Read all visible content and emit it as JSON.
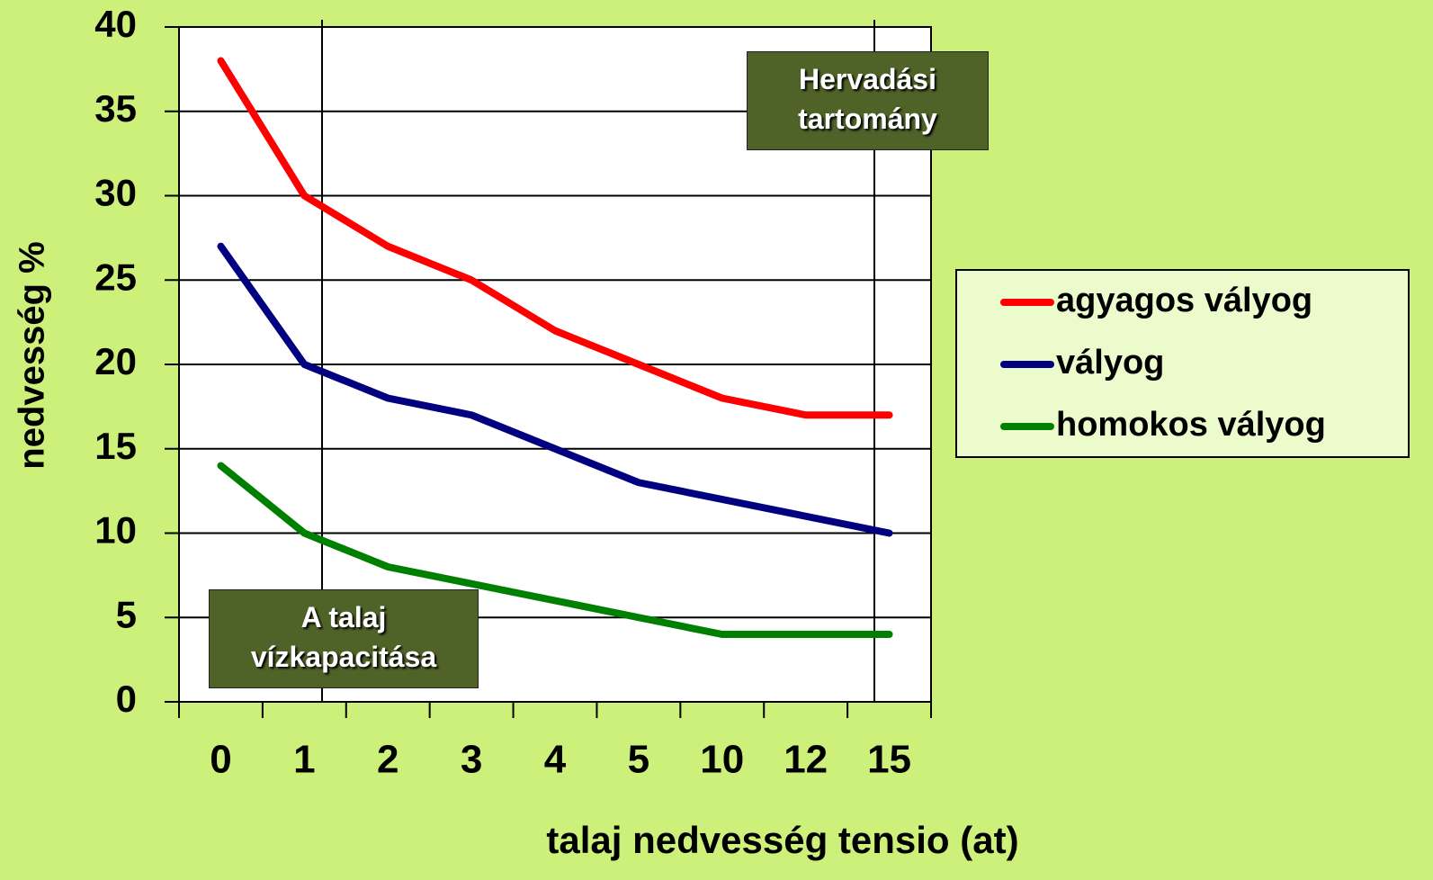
{
  "chart_data": {
    "type": "line",
    "categories": [
      "0",
      "1",
      "2",
      "3",
      "4",
      "5",
      "10",
      "12",
      "15"
    ],
    "series": [
      {
        "name": "agyagos vályog",
        "color": "#ff0000",
        "values": [
          38,
          30,
          27,
          25,
          22,
          20,
          18,
          17,
          17
        ]
      },
      {
        "name": "vályog",
        "color": "#000080",
        "values": [
          27,
          20,
          18,
          17,
          15,
          13,
          12,
          11,
          10
        ]
      },
      {
        "name": "homokos vályog",
        "color": "#008000",
        "values": [
          14,
          10,
          8,
          7,
          6,
          5,
          4,
          4,
          4
        ]
      }
    ],
    "xlabel": "talaj nedvesség tensio (at)",
    "ylabel": "nedvesség %",
    "ylim": [
      0,
      40
    ],
    "yticks": [
      0,
      5,
      10,
      15,
      20,
      25,
      30,
      35,
      40
    ],
    "grid": true,
    "legend": "right",
    "annotations": [
      "Hervadási tartomány",
      "A talaj vízkapacitása"
    ]
  }
}
